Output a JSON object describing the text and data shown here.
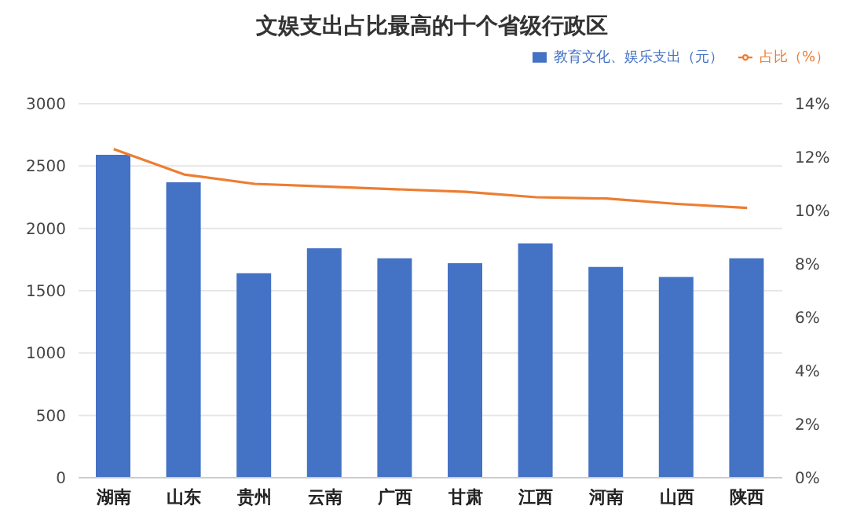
{
  "chart_data": {
    "type": "bar",
    "title": "文娱支出占比最高的十个省级行政区",
    "categories": [
      "湖南",
      "山东",
      "贵州",
      "云南",
      "广西",
      "甘肃",
      "江西",
      "河南",
      "山西",
      "陕西"
    ],
    "series": [
      {
        "name": "教育文化、娱乐支出（元）",
        "color": "#4472c4",
        "values": [
          2590,
          2370,
          1640,
          1840,
          1760,
          1720,
          1880,
          1690,
          1610,
          1760
        ]
      },
      {
        "name": "占比（%）",
        "type": "line",
        "axis": "y2",
        "color": "#ed7d31",
        "values": [
          12.3,
          11.35,
          11.0,
          10.9,
          10.8,
          10.7,
          10.5,
          10.45,
          10.25,
          10.1
        ]
      }
    ],
    "ylim": [
      0,
      3000
    ],
    "yticks": [
      0,
      500,
      1000,
      1500,
      2000,
      2500,
      3000
    ],
    "y2lim": [
      0,
      14
    ],
    "y2ticks": [
      {
        "value": 0,
        "label": "0%"
      },
      {
        "value": 2,
        "label": "2%"
      },
      {
        "value": 4,
        "label": "4%"
      },
      {
        "value": 6,
        "label": "6%"
      },
      {
        "value": 8,
        "label": "8%"
      },
      {
        "value": 10,
        "label": "10%"
      },
      {
        "value": 12,
        "label": "12%"
      },
      {
        "value": 14,
        "label": "14%"
      }
    ],
    "grid": "y",
    "legend": "top right",
    "marker": "none"
  }
}
